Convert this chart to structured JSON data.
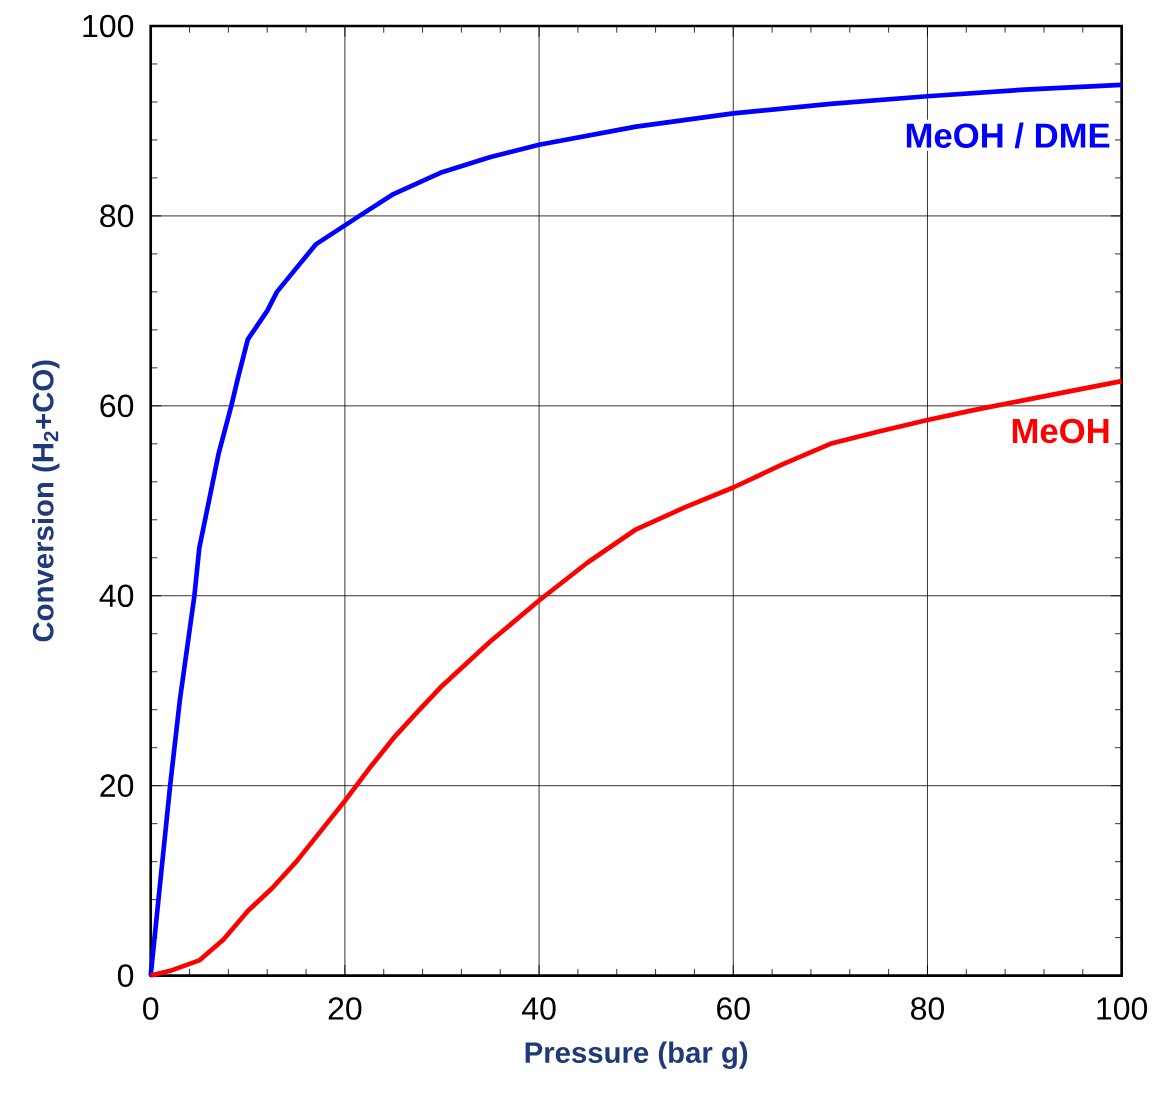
{
  "chart_data": {
    "type": "line",
    "xlabel": "Pressure (bar g)",
    "ylabel": "Conversion (H$_{2}$+CO)",
    "xlim": [
      0,
      100
    ],
    "ylim": [
      0,
      100
    ],
    "xticks": [
      0,
      20,
      40,
      60,
      80,
      100
    ],
    "yticks": [
      0,
      20,
      40,
      60,
      80,
      100
    ],
    "grid": true,
    "marker": "none",
    "line_style": "solid",
    "series": [
      {
        "name": "MeOH / DME",
        "color": "#0000ff",
        "x": [
          0,
          1,
          2,
          3,
          4.5,
          5,
          6,
          7,
          8.3,
          9,
          10,
          11,
          12,
          13,
          15,
          17,
          21.5,
          25,
          30,
          35,
          40,
          50,
          60,
          70,
          80,
          90,
          100
        ],
        "values": [
          0,
          10,
          20,
          29,
          40,
          45,
          50,
          55,
          60,
          63,
          67,
          68.5,
          70,
          72,
          74.5,
          77,
          80,
          82.3,
          84.6,
          86.2,
          87.5,
          89.4,
          90.8,
          91.8,
          92.6,
          93.3,
          93.8
        ]
      },
      {
        "name": "MeOH",
        "color": "#ff0000",
        "x": [
          0,
          2,
          5,
          7.5,
          10,
          12.5,
          15,
          17.5,
          20,
          22.5,
          25,
          27.5,
          30,
          35,
          40,
          45,
          50,
          55,
          60,
          65,
          70,
          75,
          80,
          85,
          90,
          95,
          100
        ],
        "values": [
          0,
          0.5,
          1.6,
          3.8,
          6.8,
          9.2,
          12,
          15.2,
          18.4,
          21.8,
          25,
          27.8,
          30.5,
          35.2,
          39.5,
          43.5,
          47,
          49.3,
          51.4,
          53.8,
          56,
          57.3,
          58.5,
          59.6,
          60.6,
          61.6,
          62.6
        ]
      }
    ]
  }
}
